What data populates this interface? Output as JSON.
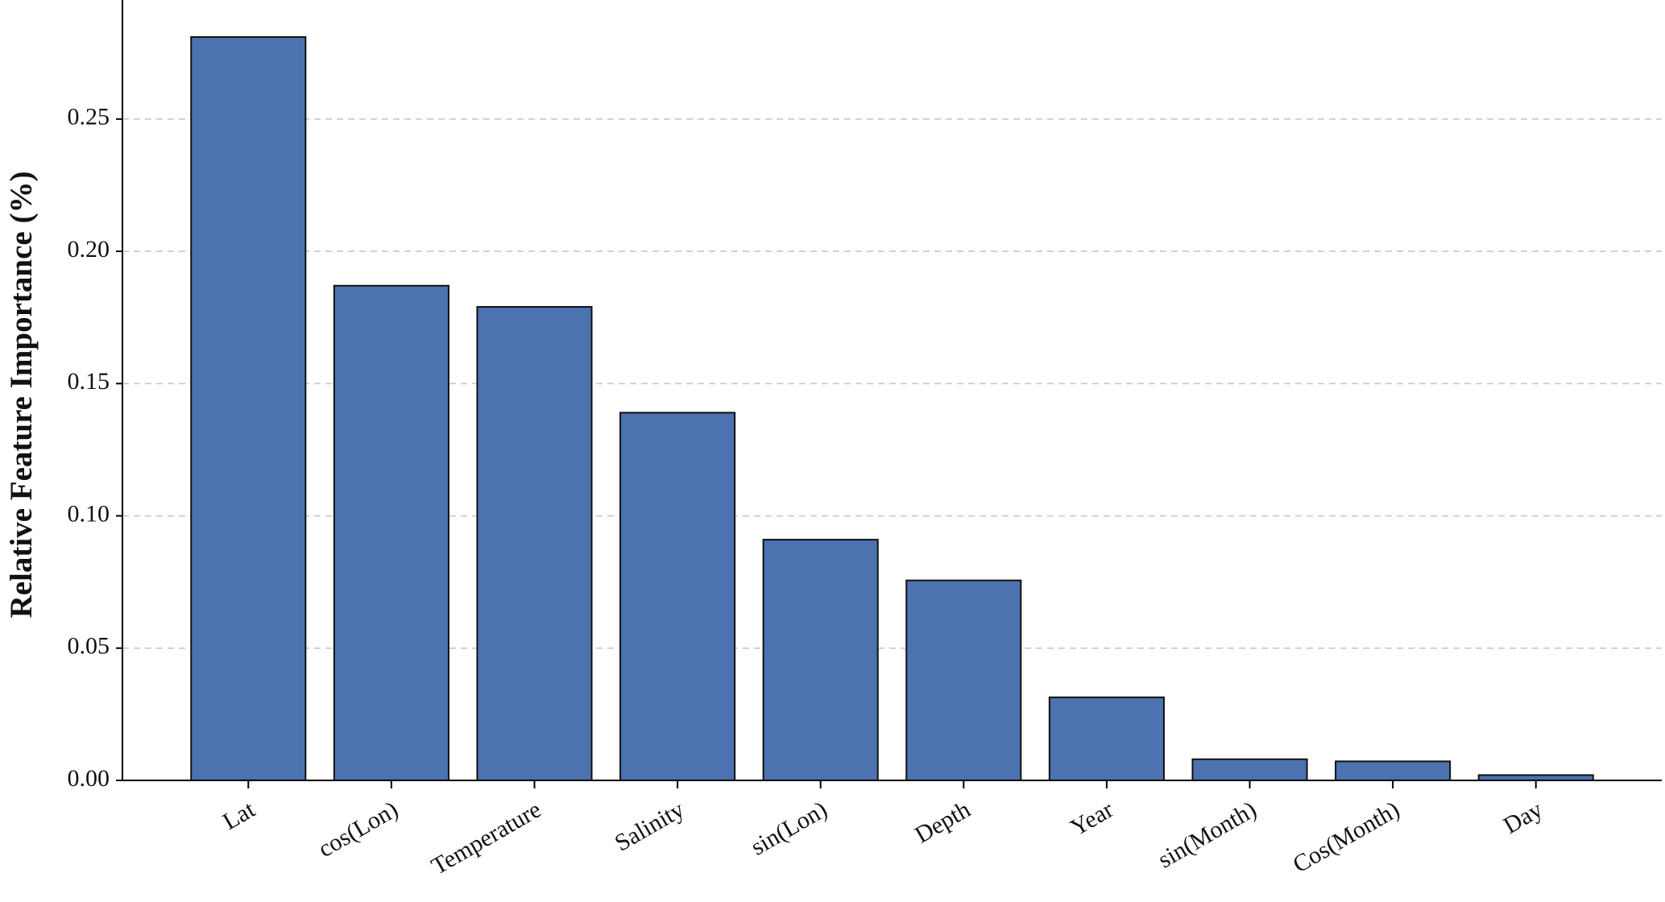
{
  "chart_data": {
    "type": "bar",
    "y_label": "Relative Feature Importance (%)",
    "categories": [
      "Lat",
      "cos(Lon)",
      "Temperature",
      "Salinity",
      "sin(Lon)",
      "Depth",
      "Year",
      "sin(Month)",
      "Cos(Month)",
      "Day"
    ],
    "values": [
      0.281,
      0.187,
      0.179,
      0.139,
      0.091,
      0.0756,
      0.0314,
      0.008,
      0.0072,
      0.002
    ],
    "color": "#4c72b0",
    "ylim": [
      0,
      0.295
    ],
    "yticks": [
      {
        "value": 0,
        "label": "0.00"
      },
      {
        "value": 0.05,
        "label": "0.05"
      },
      {
        "value": 0.1,
        "label": "0.10"
      },
      {
        "value": 0.15,
        "label": "0.15"
      },
      {
        "value": 0.2,
        "label": "0.20"
      },
      {
        "value": 0.25,
        "label": "0.25"
      }
    ],
    "grid": true
  }
}
